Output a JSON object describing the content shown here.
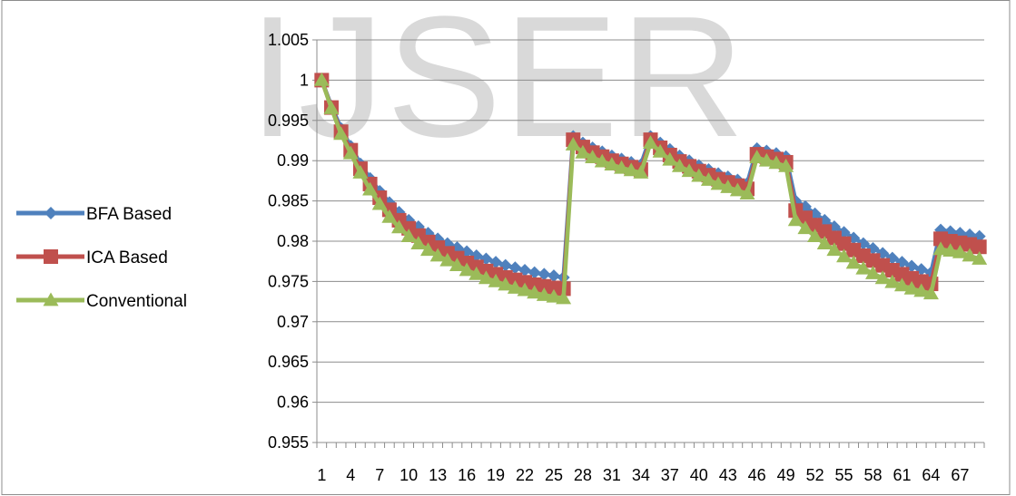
{
  "watermark": "IJSER",
  "chart_data": {
    "type": "line",
    "title": "",
    "xlabel": "",
    "ylabel": "",
    "x": [
      1,
      2,
      3,
      4,
      5,
      6,
      7,
      8,
      9,
      10,
      11,
      12,
      13,
      14,
      15,
      16,
      17,
      18,
      19,
      20,
      21,
      22,
      23,
      24,
      25,
      26,
      27,
      28,
      29,
      30,
      31,
      32,
      33,
      34,
      35,
      36,
      37,
      38,
      39,
      40,
      41,
      42,
      43,
      44,
      45,
      46,
      47,
      48,
      49,
      50,
      51,
      52,
      53,
      54,
      55,
      56,
      57,
      58,
      59,
      60,
      61,
      62,
      63,
      64,
      65,
      66,
      67,
      68,
      69
    ],
    "x_tick_labels": [
      "1",
      "4",
      "7",
      "10",
      "13",
      "16",
      "19",
      "22",
      "25",
      "28",
      "31",
      "34",
      "37",
      "40",
      "43",
      "46",
      "49",
      "52",
      "55",
      "58",
      "61",
      "64",
      "67"
    ],
    "y_tick_labels": [
      "0.955",
      "0.96",
      "0.965",
      "0.97",
      "0.975",
      "0.98",
      "0.985",
      "0.99",
      "0.995",
      "1",
      "1.005"
    ],
    "ylim": [
      0.955,
      1.005
    ],
    "grid": "horizontal",
    "legend_position": "left",
    "series": [
      {
        "name": "BFA Based",
        "color": "#4f81bd",
        "marker": "diamond",
        "values": [
          1.0,
          0.9968,
          0.994,
          0.9918,
          0.9896,
          0.9878,
          0.9862,
          0.9848,
          0.9836,
          0.9826,
          0.9818,
          0.981,
          0.9803,
          0.9797,
          0.9792,
          0.9787,
          0.9782,
          0.9778,
          0.9774,
          0.977,
          0.9767,
          0.9764,
          0.9761,
          0.9759,
          0.9757,
          0.9755,
          0.993,
          0.9922,
          0.9916,
          0.9911,
          0.9906,
          0.9902,
          0.9898,
          0.9895,
          0.993,
          0.9922,
          0.9914,
          0.9906,
          0.99,
          0.9894,
          0.9889,
          0.9884,
          0.988,
          0.9876,
          0.9872,
          0.9915,
          0.9912,
          0.9909,
          0.9905,
          0.985,
          0.9843,
          0.9834,
          0.9826,
          0.9818,
          0.9811,
          0.9804,
          0.9797,
          0.9791,
          0.9785,
          0.9779,
          0.9774,
          0.9769,
          0.9765,
          0.9761,
          0.9814,
          0.9812,
          0.981,
          0.9808,
          0.9806
        ]
      },
      {
        "name": "ICA Based",
        "color": "#c0504d",
        "marker": "square",
        "values": [
          1.0,
          0.9966,
          0.9936,
          0.9913,
          0.989,
          0.9871,
          0.9854,
          0.9839,
          0.9826,
          0.9816,
          0.9807,
          0.9799,
          0.9792,
          0.9785,
          0.9779,
          0.9773,
          0.9768,
          0.9763,
          0.9759,
          0.9755,
          0.9752,
          0.9749,
          0.9746,
          0.9744,
          0.9742,
          0.9741,
          0.9926,
          0.9917,
          0.991,
          0.9905,
          0.99,
          0.9896,
          0.9892,
          0.9889,
          0.9926,
          0.9916,
          0.9907,
          0.9899,
          0.9893,
          0.9887,
          0.9882,
          0.9877,
          0.9873,
          0.9869,
          0.9865,
          0.9908,
          0.9905,
          0.9902,
          0.9898,
          0.9838,
          0.9829,
          0.982,
          0.9812,
          0.9804,
          0.9797,
          0.9789,
          0.9782,
          0.9776,
          0.977,
          0.9764,
          0.9759,
          0.9754,
          0.975,
          0.9747,
          0.9803,
          0.98,
          0.9798,
          0.9796,
          0.9793
        ]
      },
      {
        "name": "Conventional",
        "color": "#9bbb59",
        "marker": "triangle",
        "values": [
          1.0,
          0.9965,
          0.9933,
          0.9909,
          0.9885,
          0.9864,
          0.9846,
          0.983,
          0.9817,
          0.9806,
          0.9797,
          0.9789,
          0.9782,
          0.9776,
          0.977,
          0.9764,
          0.9759,
          0.9754,
          0.975,
          0.9746,
          0.9742,
          0.9739,
          0.9736,
          0.9733,
          0.9731,
          0.9729,
          0.992,
          0.991,
          0.9904,
          0.9899,
          0.9895,
          0.9891,
          0.9888,
          0.9885,
          0.9922,
          0.9911,
          0.9901,
          0.9893,
          0.9887,
          0.9881,
          0.9876,
          0.9871,
          0.9867,
          0.9863,
          0.9859,
          0.9904,
          0.99,
          0.9897,
          0.9893,
          0.9826,
          0.9816,
          0.9806,
          0.9797,
          0.9789,
          0.9781,
          0.9773,
          0.9766,
          0.976,
          0.9754,
          0.9749,
          0.9745,
          0.9741,
          0.9738,
          0.9735,
          0.979,
          0.9788,
          0.9786,
          0.9782,
          0.9778
        ]
      }
    ]
  }
}
